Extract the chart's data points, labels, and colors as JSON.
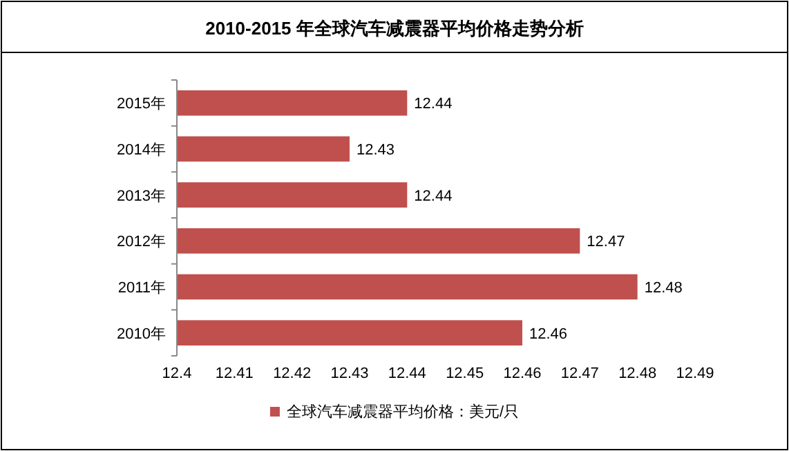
{
  "chart_data": {
    "type": "bar",
    "orientation": "horizontal",
    "title": "2010-2015 年全球汽车减震器平均价格走势分析",
    "categories": [
      "2015年",
      "2014年",
      "2013年",
      "2012年",
      "2011年",
      "2010年"
    ],
    "series": [
      {
        "name": "全球汽车减震器平均价格：美元/只",
        "color": "#c0504d",
        "values": [
          12.44,
          12.43,
          12.44,
          12.47,
          12.48,
          12.46
        ]
      }
    ],
    "xlim": [
      12.4,
      12.49
    ],
    "xticks": [
      12.4,
      12.41,
      12.42,
      12.43,
      12.44,
      12.45,
      12.46,
      12.47,
      12.48,
      12.49
    ],
    "data_labels": true,
    "legend": "bottom",
    "grid": false
  }
}
